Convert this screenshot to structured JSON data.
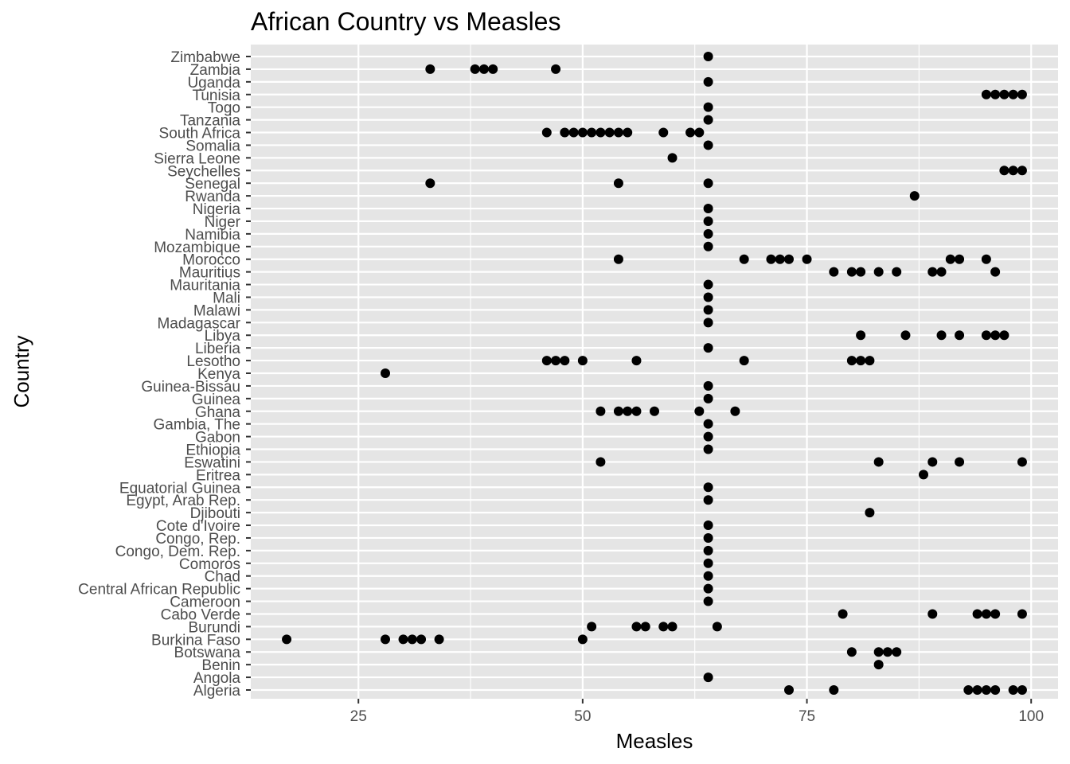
{
  "chart_data": {
    "type": "scatter",
    "title": "African Country vs Measles",
    "xlabel": "Measles",
    "ylabel": "Country",
    "xlim": [
      13,
      103
    ],
    "x_ticks": [
      25,
      50,
      75,
      100
    ],
    "grid": true,
    "legend": "none",
    "colors": {
      "panel": "#e5e5e5",
      "grid": "#ffffff",
      "point": "#000000",
      "tick_text": "#4d4d4d"
    },
    "categories": [
      "Algeria",
      "Angola",
      "Benin",
      "Botswana",
      "Burkina Faso",
      "Burundi",
      "Cabo Verde",
      "Cameroon",
      "Central African Republic",
      "Chad",
      "Comoros",
      "Congo, Dem. Rep.",
      "Congo, Rep.",
      "Cote d'Ivoire",
      "Djibouti",
      "Egypt, Arab Rep.",
      "Equatorial Guinea",
      "Eritrea",
      "Eswatini",
      "Ethiopia",
      "Gabon",
      "Gambia, The",
      "Ghana",
      "Guinea",
      "Guinea-Bissau",
      "Kenya",
      "Lesotho",
      "Liberia",
      "Libya",
      "Madagascar",
      "Malawi",
      "Mali",
      "Mauritania",
      "Mauritius",
      "Morocco",
      "Mozambique",
      "Namibia",
      "Niger",
      "Nigeria",
      "Rwanda",
      "Senegal",
      "Seychelles",
      "Sierra Leone",
      "Somalia",
      "South Africa",
      "Tanzania",
      "Togo",
      "Tunisia",
      "Uganda",
      "Zambia",
      "Zimbabwe"
    ],
    "points": {
      "Algeria": [
        73,
        78,
        93,
        94,
        95,
        96,
        98,
        99
      ],
      "Angola": [
        64
      ],
      "Benin": [
        83
      ],
      "Botswana": [
        80,
        83,
        84,
        85
      ],
      "Burkina Faso": [
        17,
        28,
        30,
        31,
        32,
        34,
        50
      ],
      "Burundi": [
        51,
        56,
        57,
        59,
        60,
        65
      ],
      "Cabo Verde": [
        79,
        89,
        94,
        95,
        96,
        99
      ],
      "Cameroon": [
        64
      ],
      "Central African Republic": [
        64
      ],
      "Chad": [
        64
      ],
      "Comoros": [
        64
      ],
      "Congo, Dem. Rep.": [
        64
      ],
      "Congo, Rep.": [
        64
      ],
      "Cote d'Ivoire": [
        64
      ],
      "Djibouti": [
        82
      ],
      "Egypt, Arab Rep.": [
        64
      ],
      "Equatorial Guinea": [
        64
      ],
      "Eritrea": [
        88
      ],
      "Eswatini": [
        52,
        83,
        89,
        92,
        99
      ],
      "Ethiopia": [
        64
      ],
      "Gabon": [
        64
      ],
      "Gambia, The": [
        64
      ],
      "Ghana": [
        52,
        54,
        55,
        56,
        58,
        63,
        67
      ],
      "Guinea": [
        64
      ],
      "Guinea-Bissau": [
        64
      ],
      "Kenya": [
        28
      ],
      "Lesotho": [
        46,
        47,
        48,
        50,
        56,
        68,
        80,
        81,
        82
      ],
      "Liberia": [
        64
      ],
      "Libya": [
        81,
        86,
        90,
        92,
        95,
        96,
        97
      ],
      "Madagascar": [
        64
      ],
      "Malawi": [
        64
      ],
      "Mali": [
        64
      ],
      "Mauritania": [
        64
      ],
      "Mauritius": [
        78,
        80,
        81,
        83,
        85,
        89,
        90,
        96
      ],
      "Morocco": [
        54,
        68,
        71,
        72,
        73,
        75,
        91,
        92,
        95
      ],
      "Mozambique": [
        64
      ],
      "Namibia": [
        64
      ],
      "Niger": [
        64
      ],
      "Nigeria": [
        64
      ],
      "Rwanda": [
        87
      ],
      "Senegal": [
        33,
        54,
        64
      ],
      "Seychelles": [
        97,
        98,
        99
      ],
      "Sierra Leone": [
        60
      ],
      "Somalia": [
        64
      ],
      "South Africa": [
        46,
        48,
        49,
        50,
        51,
        52,
        53,
        54,
        55,
        59,
        62,
        63
      ],
      "Tanzania": [
        64
      ],
      "Togo": [
        64
      ],
      "Tunisia": [
        95,
        96,
        97,
        98,
        99
      ],
      "Uganda": [
        64
      ],
      "Zambia": [
        33,
        38,
        39,
        40,
        47
      ],
      "Zimbabwe": [
        64
      ]
    }
  }
}
